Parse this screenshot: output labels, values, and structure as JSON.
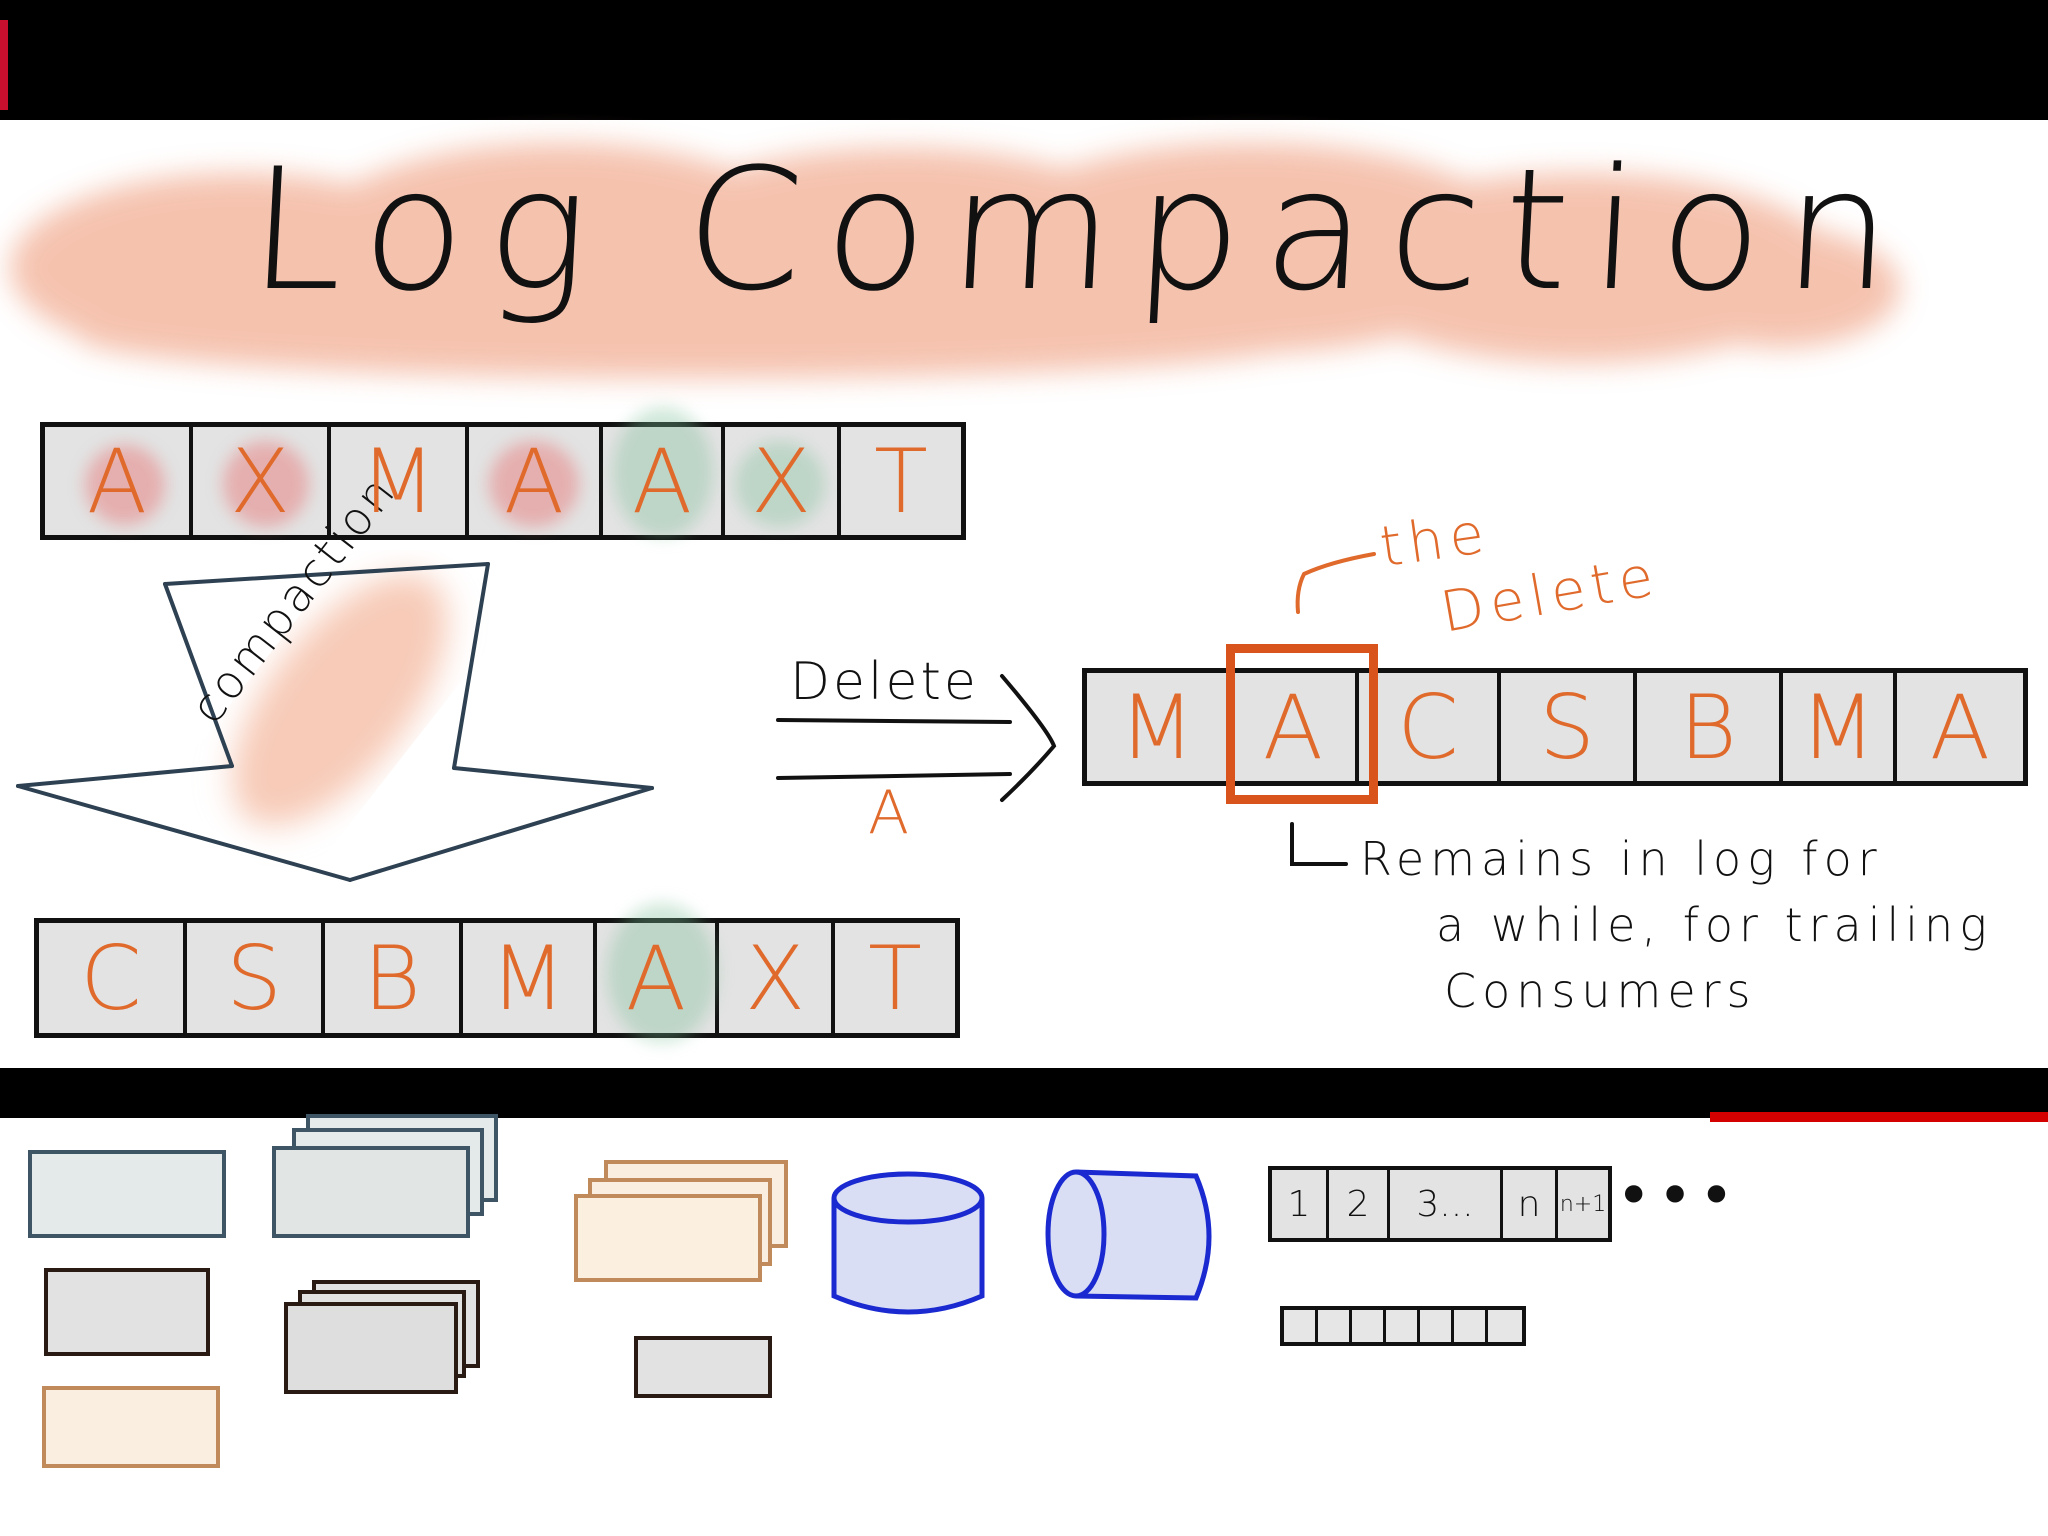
{
  "title": "Log Compaction",
  "colors": {
    "accent_orange": "#e06a2c",
    "highlight_orange": "#d9541c",
    "wash_salmon": "#f3b49b",
    "cell_gray": "#e3e3e3",
    "ink": "#111111",
    "cylinder_blue": "#1a2ad0"
  },
  "log_before": {
    "cells": [
      "A",
      "X",
      "M",
      "A",
      "A",
      "X",
      "T"
    ]
  },
  "compaction_label": "compaction",
  "log_after": {
    "cells": [
      "C",
      "S",
      "B",
      "M",
      "A",
      "X",
      "T"
    ]
  },
  "delete_arrow": {
    "top_label": "Delete",
    "bottom_label": "A"
  },
  "log_delete": {
    "cells": [
      "M",
      "A",
      "C",
      "S",
      "B",
      "M",
      "A"
    ],
    "highlighted_index": 1
  },
  "annotation_top": {
    "line1": "the",
    "line2": "Delete"
  },
  "annotation_bottom": {
    "line1": "Remains in log for",
    "line2": "a while, for trailing",
    "line3": "Consumers"
  },
  "legend": {
    "numbered_log": [
      "1",
      "2",
      "3...",
      "n",
      "n+1"
    ],
    "ellipsis": "•••"
  }
}
